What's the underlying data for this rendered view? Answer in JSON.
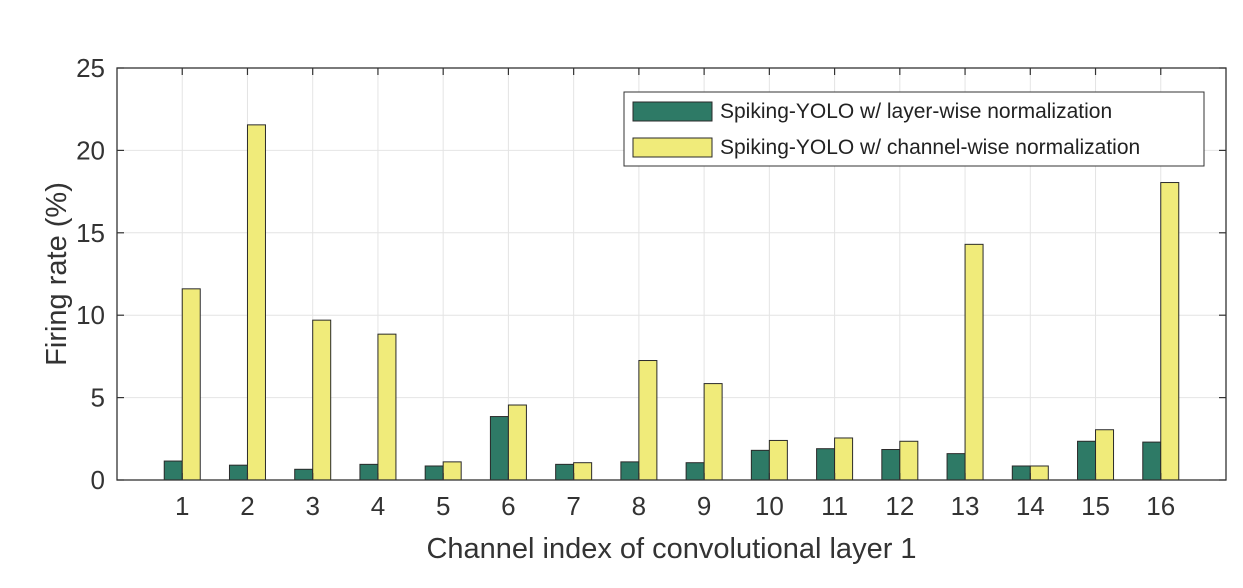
{
  "chart_data": {
    "type": "bar",
    "title": "",
    "xlabel": "Channel index of convolutional layer 1",
    "ylabel": "Firing rate (%)",
    "ylim": [
      0,
      25
    ],
    "yticks": [
      0,
      5,
      10,
      15,
      20,
      25
    ],
    "grid": true,
    "legend_position": "top-right",
    "categories": [
      "1",
      "2",
      "3",
      "4",
      "5",
      "6",
      "7",
      "8",
      "9",
      "10",
      "11",
      "12",
      "13",
      "14",
      "15",
      "16"
    ],
    "series": [
      {
        "name": "Spiking-YOLO w/ layer-wise normalization",
        "color": "#2e7a66",
        "values": [
          1.15,
          0.9,
          0.65,
          0.95,
          0.85,
          3.85,
          0.95,
          1.1,
          1.05,
          1.8,
          1.9,
          1.85,
          1.6,
          0.85,
          2.35,
          2.3
        ]
      },
      {
        "name": "Spiking-YOLO w/ channel-wise normalization",
        "color": "#f0eb7a",
        "values": [
          11.6,
          21.55,
          9.7,
          8.85,
          1.1,
          4.55,
          1.05,
          7.25,
          5.85,
          2.4,
          2.55,
          2.35,
          14.3,
          0.85,
          3.05,
          18.05
        ]
      }
    ]
  }
}
